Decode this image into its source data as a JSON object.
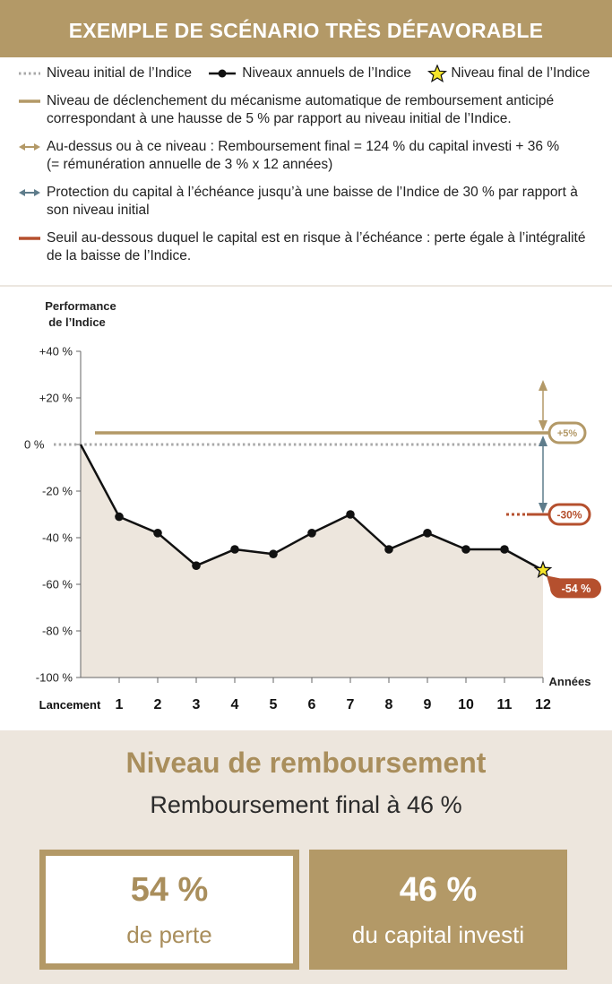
{
  "header": {
    "title": "EXEMPLE DE SCÉNARIO TRÈS DÉFAVORABLE"
  },
  "legend": {
    "initial": "Niveau initial de l’Indice",
    "annual": "Niveaux annuels de l’Indice",
    "final": "Niveau final de l’Indice",
    "trigger": "Niveau de déclenchement du mécanisme automatique de remboursement anticipé correspondant à une hausse de 5 % par rapport au niveau initial de l’Indice.",
    "above_line1": "Au-dessus ou à ce niveau : Remboursement final = 124 % du capital investi + 36 %",
    "above_line2": "(= rémunération annuelle de 3 % x 12 années)",
    "protection": "Protection du capital à l’échéance jusqu’à une baisse de l’Indice de 30 % par rapport à son niveau initial",
    "threshold": "Seuil au-dessous duquel le capital est en risque à l’échéance : perte égale à l’intégralité de la baisse de l’Indice."
  },
  "colors": {
    "gold": "#b39967",
    "rust": "#b5502e",
    "steel": "#5e7c8b",
    "area": "#ede6dd",
    "star": "#f5e52a"
  },
  "chart_data": {
    "type": "line",
    "ylabel": "Performance de l’Indice",
    "xlabel": "Années",
    "categories": [
      "Lancement",
      "1",
      "2",
      "3",
      "4",
      "5",
      "6",
      "7",
      "8",
      "9",
      "10",
      "11",
      "12"
    ],
    "x": [
      0,
      1,
      2,
      3,
      4,
      5,
      6,
      7,
      8,
      9,
      10,
      11,
      12
    ],
    "series": [
      {
        "name": "Niveaux annuels de l’Indice",
        "values": [
          0,
          -31,
          -38,
          -52,
          -45,
          -47,
          -38,
          -30,
          -45,
          -38,
          -45,
          -45,
          -54
        ]
      }
    ],
    "ylim": [
      -100,
      40
    ],
    "yticks": [
      40,
      20,
      0,
      -20,
      -40,
      -60,
      -80,
      -100
    ],
    "ytick_labels": [
      "+40 %",
      "+20 %",
      "0 %",
      "-20 %",
      "-40 %",
      "-60 %",
      "-80 %",
      "-100 %"
    ],
    "trigger_level": 5,
    "trigger_label": "+5%",
    "barrier_level": -30,
    "barrier_label": "-30%",
    "final_value": -54,
    "final_label": "-54 %"
  },
  "result": {
    "title": "Niveau de remboursement",
    "subtitle": "Remboursement final à 46 %",
    "loss_value": "54 %",
    "loss_caption": "de perte",
    "capital_value": "46 %",
    "capital_caption": "du capital investi"
  }
}
